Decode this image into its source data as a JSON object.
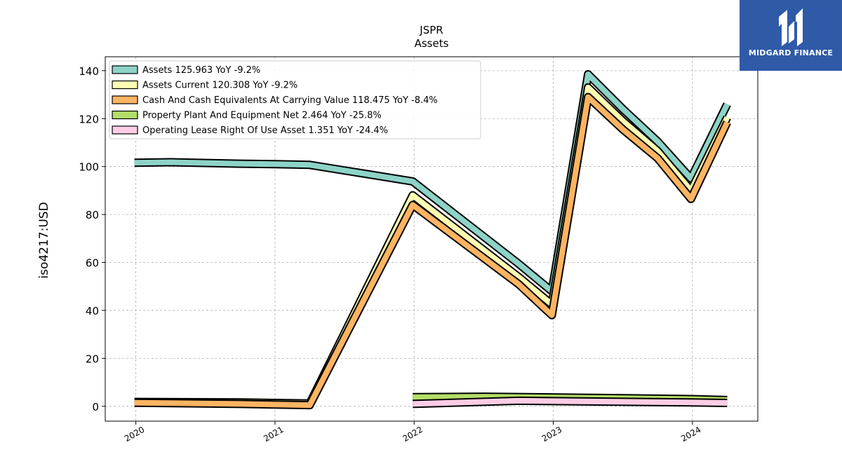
{
  "chart_data": {
    "type": "line",
    "title": "JSPR",
    "subtitle": "Assets",
    "ylabel": "iso4217:USD",
    "xlabel": "",
    "xlim": [
      2019.78,
      2024.47
    ],
    "ylim": [
      -6.2,
      145.8
    ],
    "yticks": [
      0,
      20,
      40,
      60,
      80,
      100,
      120,
      140
    ],
    "xticks": [
      {
        "value": 2020,
        "label": "2020"
      },
      {
        "value": 2021,
        "label": "2021"
      },
      {
        "value": 2022,
        "label": "2022"
      },
      {
        "value": 2023,
        "label": "2023"
      },
      {
        "value": 2024,
        "label": "2024"
      }
    ],
    "grid": true,
    "legend_position": "top-left",
    "series": [
      {
        "name": "Assets  125.963 YoY -9.2%",
        "color": "#8dd3c7",
        "points": [
          [
            2019.99,
            101.6
          ],
          [
            2020.25,
            101.8
          ],
          [
            2020.75,
            101.2
          ],
          [
            2021.0,
            101.0
          ],
          [
            2021.25,
            100.7
          ],
          [
            2021.99,
            93.8
          ],
          [
            2022.75,
            59.5
          ],
          [
            2022.99,
            48.0
          ],
          [
            2023.25,
            138.5
          ],
          [
            2023.5,
            124.0
          ],
          [
            2023.75,
            110.5
          ],
          [
            2023.99,
            95.0
          ],
          [
            2024.25,
            126.0
          ]
        ]
      },
      {
        "name": "Assets Current  120.308 YoY -9.2%",
        "color": "#ffffb3",
        "points": [
          [
            2019.99,
            1.8
          ],
          [
            2020.75,
            1.6
          ],
          [
            2021.25,
            1.2
          ],
          [
            2021.99,
            88.0
          ],
          [
            2022.75,
            54.0
          ],
          [
            2022.99,
            42.5
          ],
          [
            2023.25,
            133.0
          ],
          [
            2023.5,
            119.0
          ],
          [
            2023.75,
            106.5
          ],
          [
            2023.99,
            90.0
          ],
          [
            2024.25,
            120.5
          ]
        ]
      },
      {
        "name": "Cash And Cash Equivalents At Carrying Value  118.475 YoY -8.4%",
        "color": "#fdb462",
        "points": [
          [
            2019.99,
            1.5
          ],
          [
            2020.75,
            1.0
          ],
          [
            2021.25,
            0.5
          ],
          [
            2021.99,
            84.0
          ],
          [
            2022.75,
            51.0
          ],
          [
            2022.99,
            38.0
          ],
          [
            2023.25,
            129.0
          ],
          [
            2023.5,
            115.5
          ],
          [
            2023.75,
            103.5
          ],
          [
            2023.99,
            86.5
          ],
          [
            2024.25,
            118.5
          ]
        ]
      },
      {
        "name": "Property Plant And Equipment Net  2.464 YoY -25.8%",
        "color": "#b3de69",
        "points": [
          [
            2021.99,
            3.8
          ],
          [
            2022.5,
            4.0
          ],
          [
            2022.99,
            3.7
          ],
          [
            2023.5,
            3.4
          ],
          [
            2023.99,
            3.0
          ],
          [
            2024.25,
            2.6
          ]
        ]
      },
      {
        "name": "Operating Lease Right Of Use Asset  1.351 YoY -24.4%",
        "color": "#fccde5",
        "points": [
          [
            2021.99,
            1.0
          ],
          [
            2022.75,
            2.3
          ],
          [
            2023.25,
            2.0
          ],
          [
            2023.99,
            1.6
          ],
          [
            2024.25,
            1.4
          ]
        ]
      }
    ]
  },
  "logo": {
    "text": "MIDGARD FINANCE",
    "background": "#2f5aa8"
  }
}
